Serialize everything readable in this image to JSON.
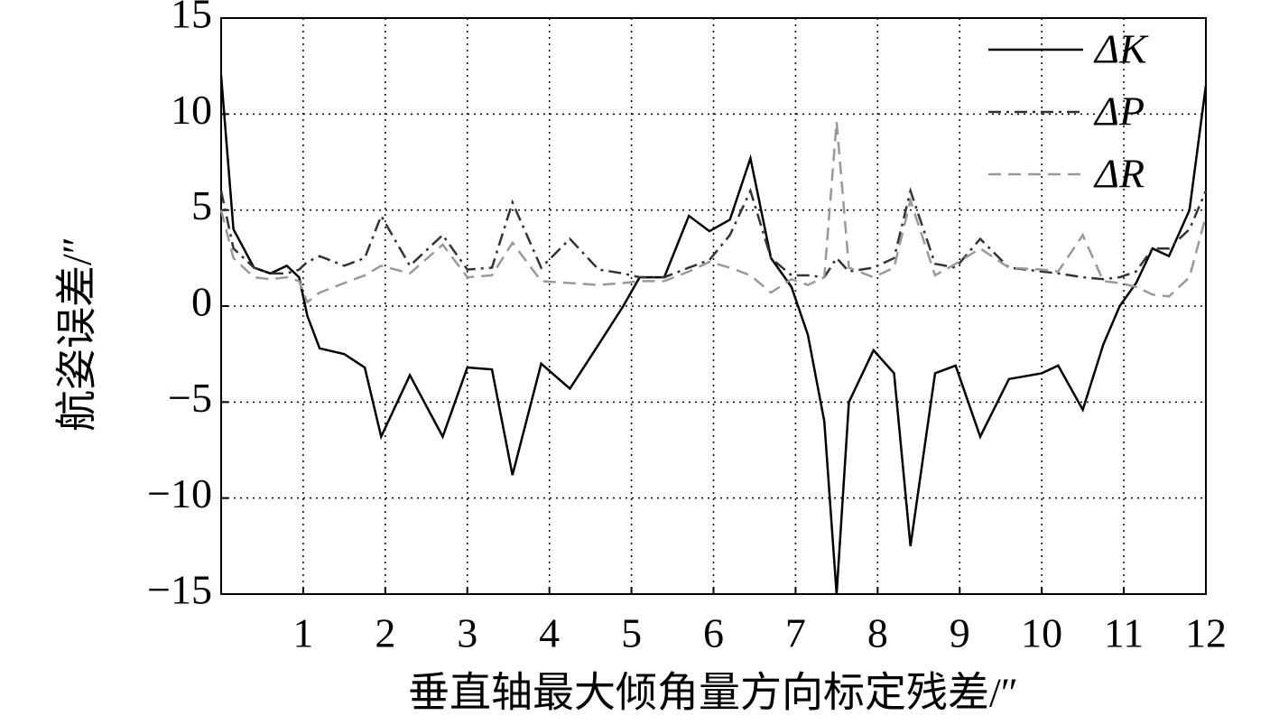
{
  "chart_data": {
    "type": "line",
    "xlabel": "垂直轴最大倾角量方向标定残差/″",
    "ylabel": "航姿误差/″",
    "x": [
      0,
      0.15,
      0.4,
      0.6,
      0.8,
      0.95,
      1.05,
      1.2,
      1.5,
      1.75,
      1.95,
      2.3,
      2.7,
      3.0,
      3.3,
      3.55,
      3.9,
      4.25,
      4.6,
      4.9,
      5.1,
      5.4,
      5.7,
      5.95,
      6.2,
      6.45,
      6.7,
      6.95,
      7.15,
      7.35,
      7.5,
      7.65,
      7.95,
      8.2,
      8.4,
      8.7,
      8.95,
      9.25,
      9.6,
      10.0,
      10.2,
      10.5,
      10.75,
      10.95,
      11.15,
      11.35,
      11.55,
      11.8,
      12
    ],
    "series": [
      {
        "name": "ΔK",
        "color": "#000000",
        "dash": "solid",
        "values": [
          12,
          4,
          2,
          1.7,
          2.1,
          1.5,
          -0.5,
          -2.2,
          -2.5,
          -3.2,
          -6.8,
          -3.6,
          -6.8,
          -3.2,
          -3.3,
          -8.8,
          -3,
          -4.3,
          -2,
          0,
          1.5,
          1.5,
          4.7,
          3.9,
          4.5,
          7.7,
          2.5,
          1.0,
          -1.5,
          -6,
          -15,
          -5,
          -2.3,
          -3.5,
          -12.5,
          -3.5,
          -3.1,
          -6.8,
          -3.8,
          -3.5,
          -3.1,
          -5.4,
          -2,
          0,
          1.2,
          3,
          2.6,
          5,
          11.5
        ]
      },
      {
        "name": "ΔP",
        "color": "#333333",
        "dash": "dashdot",
        "values": [
          6,
          3,
          2,
          1.7,
          1.7,
          1.9,
          2.3,
          2.6,
          2.1,
          2.5,
          4.7,
          2.1,
          3.7,
          1.9,
          2.0,
          5.4,
          2.0,
          3.5,
          1.9,
          1.7,
          1.5,
          1.5,
          2.0,
          2.4,
          3.7,
          6.0,
          2.5,
          1.6,
          1.6,
          1.5,
          2.5,
          1.8,
          2.0,
          2.5,
          6.0,
          2.2,
          2.0,
          3.5,
          2.0,
          1.8,
          1.7,
          1.5,
          1.4,
          1.5,
          1.8,
          3.0,
          3.0,
          4.0,
          6.0
        ]
      },
      {
        "name": "ΔR",
        "color": "#999999",
        "dash": "dashed",
        "values": [
          5,
          2.5,
          1.5,
          1.4,
          1.5,
          1.3,
          0.2,
          0.7,
          1.2,
          1.6,
          2.1,
          1.7,
          3.2,
          1.5,
          1.6,
          3.3,
          1.3,
          1.2,
          1.1,
          1.2,
          1.3,
          1.3,
          1.8,
          2.3,
          2.0,
          1.6,
          0.7,
          1.4,
          1.1,
          1.5,
          9.6,
          2.0,
          1.5,
          2.0,
          5.5,
          1.6,
          2.2,
          3.0,
          2.0,
          1.9,
          1.8,
          3.7,
          1.3,
          1.2,
          1.0,
          0.6,
          0.5,
          1.5,
          4.7
        ]
      }
    ],
    "xlim": [
      0,
      12
    ],
    "xticks": [
      1,
      2,
      3,
      4,
      5,
      6,
      7,
      8,
      9,
      10,
      11,
      12
    ],
    "ylim": [
      -15,
      15
    ],
    "yticks": [
      {
        "value": -15,
        "label": "−15"
      },
      {
        "value": -10,
        "label": "−10"
      },
      {
        "value": -5,
        "label": "−5"
      },
      0,
      5,
      10,
      15
    ],
    "grid": true,
    "legend": "upper-right"
  }
}
